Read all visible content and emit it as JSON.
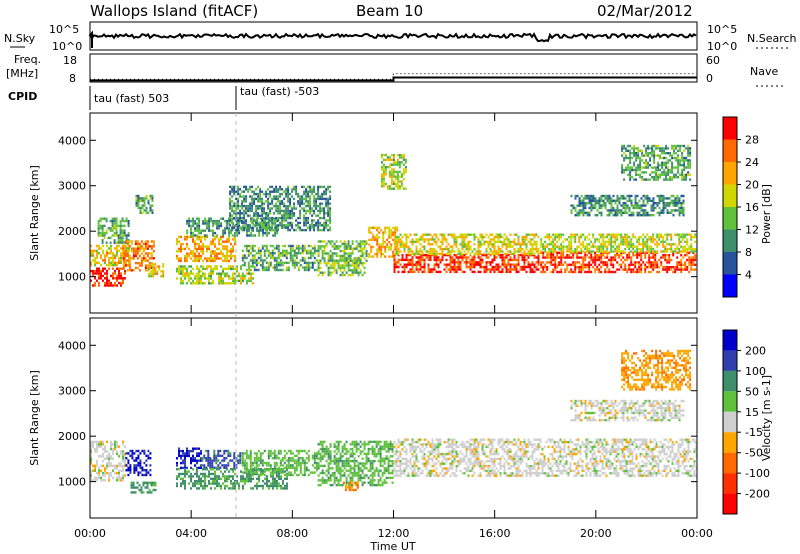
{
  "header": {
    "site": "Wallops Island (fitACF)",
    "beam": "Beam 10",
    "date": "02/Mar/2012"
  },
  "noise_panel": {
    "left_label": "N.Sky",
    "right_label": "N.Search",
    "left_ticks": [
      "10^5",
      "10^0"
    ],
    "right_ticks": [
      "10^5",
      "10^0"
    ]
  },
  "freq_panel": {
    "left_label_1": "Freq.",
    "left_label_2": "[MHz]",
    "right_label": "Nave",
    "left_ticks": [
      "18",
      "8"
    ],
    "right_ticks": [
      "60",
      "0"
    ],
    "freq_mhz": [
      [
        0,
        8.6
      ],
      [
        12,
        9.6
      ],
      [
        24,
        9.6
      ]
    ],
    "nave": [
      [
        0,
        6
      ],
      [
        12,
        18
      ],
      [
        24,
        18
      ]
    ]
  },
  "cpid": {
    "label": "CPID",
    "segments": [
      {
        "start_hour": 0,
        "text": "tau (fast) 503"
      },
      {
        "start_hour": 5.95,
        "text": "tau (fast) -503"
      }
    ]
  },
  "time_axis": {
    "label": "Time UT",
    "ticks": [
      "00:00",
      "04:00",
      "08:00",
      "12:00",
      "16:00",
      "20:00",
      "00:00"
    ]
  },
  "range_axis": {
    "label": "Slant Range [km]",
    "ticks": [
      "1000",
      "2000",
      "3000",
      "4000"
    ]
  },
  "power_scale": {
    "label": "Power [dB]",
    "ticks": [
      "28",
      "24",
      "20",
      "16",
      "12",
      "8",
      "4"
    ],
    "colors": [
      "#ff0000",
      "#ff6a00",
      "#ffa500",
      "#cfd600",
      "#5fc13c",
      "#3f8f6a",
      "#27549c",
      "#0000ff"
    ]
  },
  "velocity_scale": {
    "label": "Velocity [m s-1]",
    "ticks": [
      "200",
      "100",
      "50",
      "15",
      "-15",
      "-50",
      "-100",
      "-200"
    ],
    "colors": [
      "#0000cc",
      "#2f3fae",
      "#3f8f6a",
      "#5fc13c",
      "#cfcfcf",
      "#ffa500",
      "#ff6a00",
      "#ff3000",
      "#ff0000"
    ]
  },
  "chart_data": {
    "type": "heatmap",
    "x_range_hours": [
      0,
      24
    ],
    "y_range_km": [
      200,
      4600
    ],
    "power_regions_db": [
      {
        "hours": [
          0.0,
          1.4
        ],
        "km": [
          800,
          1200
        ],
        "value": 27
      },
      {
        "hours": [
          0.0,
          1.6
        ],
        "km": [
          1200,
          1700
        ],
        "value": 18
      },
      {
        "hours": [
          0.3,
          1.6
        ],
        "km": [
          1700,
          2300
        ],
        "value": 10
      },
      {
        "hours": [
          1.3,
          2.6
        ],
        "km": [
          1100,
          1800
        ],
        "value": 22
      },
      {
        "hours": [
          1.8,
          2.5
        ],
        "km": [
          2400,
          2800
        ],
        "value": 10
      },
      {
        "hours": [
          2.3,
          2.9
        ],
        "km": [
          1000,
          1300
        ],
        "value": 18
      },
      {
        "hours": [
          3.4,
          5.8
        ],
        "km": [
          1300,
          1900
        ],
        "value": 20
      },
      {
        "hours": [
          3.4,
          6.5
        ],
        "km": [
          850,
          1250
        ],
        "value": 14
      },
      {
        "hours": [
          3.8,
          7.4
        ],
        "km": [
          1900,
          2300
        ],
        "value": 8
      },
      {
        "hours": [
          5.5,
          9.5
        ],
        "km": [
          2000,
          3000
        ],
        "value": 8
      },
      {
        "hours": [
          6.0,
          9.0
        ],
        "km": [
          1100,
          1700
        ],
        "value": 10
      },
      {
        "hours": [
          9.0,
          11.0
        ],
        "km": [
          1000,
          1800
        ],
        "value": 12
      },
      {
        "hours": [
          11.0,
          12.2
        ],
        "km": [
          1400,
          2100
        ],
        "value": 20
      },
      {
        "hours": [
          11.5,
          12.5
        ],
        "km": [
          2900,
          3700
        ],
        "value": 14
      },
      {
        "hours": [
          12.0,
          17.8
        ],
        "km": [
          1100,
          1500
        ],
        "value": 27
      },
      {
        "hours": [
          12.0,
          17.8
        ],
        "km": [
          1500,
          1950
        ],
        "value": 17
      },
      {
        "hours": [
          17.8,
          24.0
        ],
        "km": [
          1100,
          1550
        ],
        "value": 26
      },
      {
        "hours": [
          17.8,
          24.0
        ],
        "km": [
          1550,
          1950
        ],
        "value": 15
      },
      {
        "hours": [
          19.0,
          23.5
        ],
        "km": [
          2300,
          2800
        ],
        "value": 8
      },
      {
        "hours": [
          21.0,
          23.8
        ],
        "km": [
          3100,
          3900
        ],
        "value": 10
      }
    ],
    "velocity_regions_ms": [
      {
        "hours": [
          0.0,
          1.4
        ],
        "km": [
          1000,
          1900
        ],
        "value": 0
      },
      {
        "hours": [
          1.4,
          2.4
        ],
        "km": [
          1100,
          1700
        ],
        "value": 210
      },
      {
        "hours": [
          1.6,
          2.6
        ],
        "km": [
          750,
          1000
        ],
        "value": 60
      },
      {
        "hours": [
          3.4,
          4.4
        ],
        "km": [
          1250,
          1750
        ],
        "value": 200
      },
      {
        "hours": [
          4.4,
          6.0
        ],
        "km": [
          1300,
          1700
        ],
        "value": 110
      },
      {
        "hours": [
          3.4,
          7.8
        ],
        "km": [
          850,
          1300
        ],
        "value": 60
      },
      {
        "hours": [
          6.0,
          9.0
        ],
        "km": [
          1100,
          1700
        ],
        "value": 40
      },
      {
        "hours": [
          9.0,
          12.0
        ],
        "km": [
          900,
          1900
        ],
        "value": 40
      },
      {
        "hours": [
          10.0,
          10.6
        ],
        "km": [
          800,
          1000
        ],
        "value": -60
      },
      {
        "hours": [
          12.0,
          24.0
        ],
        "km": [
          1100,
          1950
        ],
        "value": 0
      },
      {
        "hours": [
          19.0,
          23.5
        ],
        "km": [
          2300,
          2800
        ],
        "value": 0
      },
      {
        "hours": [
          21.0,
          23.8
        ],
        "km": [
          3000,
          3900
        ],
        "value": -40
      }
    ]
  }
}
